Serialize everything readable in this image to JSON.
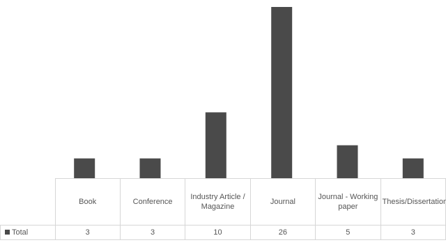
{
  "chart_data": {
    "type": "bar",
    "categories": [
      "Book",
      "Conference",
      "Industry Article / Magazine",
      "Journal",
      "Journal - Working paper",
      "Thesis/Dissertation"
    ],
    "series": [
      {
        "name": "Total",
        "values": [
          3,
          3,
          10,
          26,
          5,
          3
        ]
      }
    ],
    "ylim": [
      0,
      26
    ],
    "grid": false,
    "legend": "data table",
    "colors": {
      "bar": "#4a4a4a",
      "legend_swatch": "#4a4a4a",
      "table_border": "#d6d6d6",
      "text": "#555555"
    }
  },
  "table": {
    "header_labels": [
      "Book",
      "Conference",
      "Industry Article / Magazine",
      "Journal",
      "Journal - Working paper",
      "Thesis/Dissertation"
    ],
    "series_label": "Total",
    "values": [
      "3",
      "3",
      "10",
      "26",
      "5",
      "3"
    ]
  }
}
